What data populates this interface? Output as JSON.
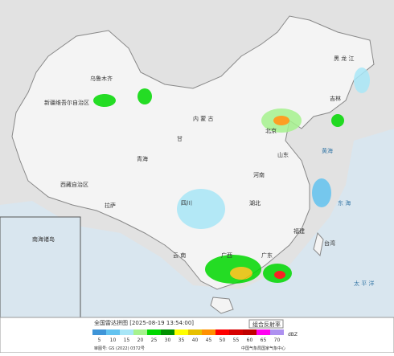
{
  "header": {
    "title": "全国雷达拼图 [2025-08-19 13:54:00]",
    "product": "组合反射率",
    "unit": "dBZ",
    "review_no": "审图号: GS (2022) 0372号",
    "source": "中国气象局国家气象中心"
  },
  "legend": {
    "ticks": [
      5,
      10,
      15,
      20,
      25,
      30,
      35,
      40,
      45,
      50,
      55,
      60,
      65,
      70
    ],
    "colors": [
      "#3f95d8",
      "#63c3f0",
      "#a8e6f7",
      "#a6f28e",
      "#00d800",
      "#019000",
      "#ffff00",
      "#e7c000",
      "#ff9000",
      "#ff0000",
      "#d60000",
      "#c00000",
      "#ff00f0",
      "#ad90f0"
    ]
  },
  "labels": {
    "xinjiang": "新疆维吾尔自治区",
    "urumqi": "乌鲁木齐",
    "tibet": "西藏自治区",
    "lhasa": "拉萨",
    "qinghai": "青海",
    "gansu": "甘",
    "neimenggu": "内 蒙 古",
    "heilongjiang": "黑 龙 江",
    "jilin": "吉林",
    "beijing": "北京",
    "shandong": "山东",
    "henan": "河南",
    "hubei": "湖北",
    "sichuan": "四川",
    "yunnan": "云 南",
    "guangxi": "广西",
    "guangdong": "广东",
    "fujian": "福建",
    "taiwan": "台湾",
    "yellowsea": "黄海",
    "eastsea": "东 海",
    "pacific": "太 平 洋",
    "nanhai": "南海诸岛"
  }
}
